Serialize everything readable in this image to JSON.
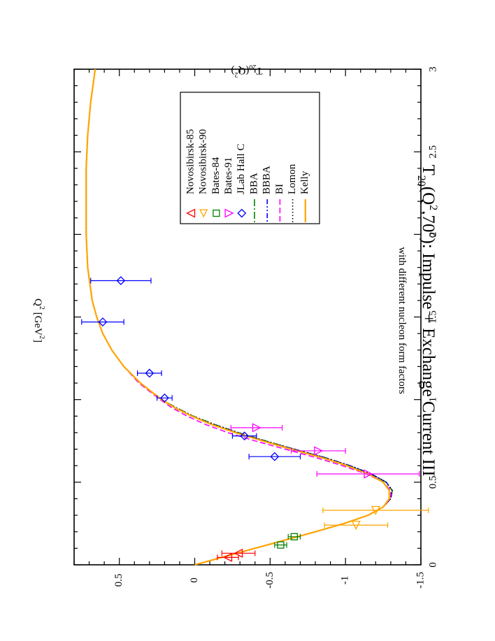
{
  "chart_data": {
    "type": "line",
    "title_main": "T",
    "title_sub": "20",
    "title_arg": "(Q",
    "title_sup": "2",
    "title_mid": ",70",
    "title_sup2": "o",
    "title_rest": "): Impulse + Exchange Current  III",
    "subtitle": "with different nucleon form factors",
    "xlabel": "Q",
    "xlabel_sup": "2",
    "xlabel_unit": " [GeV",
    "xlabel_unit_sup": "2",
    "xlabel_end": "]",
    "ylabel": "T",
    "ylabel_sub": "20",
    "ylabel_arg": "(Q",
    "ylabel_sup": "2",
    "ylabel_end": ")",
    "xlim": [
      0,
      3
    ],
    "ylim": [
      -1.5,
      0.8
    ],
    "x_ticks": [
      "0",
      "0.5",
      "1",
      "1.5",
      "2",
      "2.5",
      "3"
    ],
    "x_tick_values": [
      0,
      0.5,
      1,
      1.5,
      2,
      2.5,
      3
    ],
    "y_ticks": [
      "-1.5",
      "-1",
      "-0.5",
      "0",
      "0.5"
    ],
    "y_tick_values": [
      -1.5,
      -1,
      -0.5,
      0,
      0.5
    ],
    "data_series": [
      {
        "name": "Novosibirsk-85",
        "marker": "triangle-left",
        "color": "#ff0000",
        "points": [
          {
            "x": 0.045,
            "y": -0.22,
            "err": 0.07
          },
          {
            "x": 0.07,
            "y": -0.29,
            "err": 0.11
          }
        ]
      },
      {
        "name": "Novosibirsk-90",
        "marker": "triangle-down",
        "color": "#ffa500",
        "points": [
          {
            "x": 0.24,
            "y": -1.07,
            "err": 0.21
          },
          {
            "x": 0.33,
            "y": -1.2,
            "err": 0.35
          }
        ]
      },
      {
        "name": "Bates-84",
        "marker": "square",
        "color": "#008000",
        "points": [
          {
            "x": 0.12,
            "y": -0.57,
            "err": 0.04
          },
          {
            "x": 0.17,
            "y": -0.66,
            "err": 0.04
          }
        ]
      },
      {
        "name": "Bates-91",
        "marker": "triangle-right",
        "color": "#ff00ff",
        "points": [
          {
            "x": 0.55,
            "y": -1.15,
            "err": 0.34
          },
          {
            "x": 0.69,
            "y": -0.82,
            "err": 0.18
          },
          {
            "x": 0.83,
            "y": -0.41,
            "err": 0.17
          }
        ]
      },
      {
        "name": "JLab Hall C",
        "marker": "diamond",
        "color": "#0000ff",
        "points": [
          {
            "x": 0.655,
            "y": -0.53,
            "err": 0.17
          },
          {
            "x": 0.78,
            "y": -0.33,
            "err": 0.08
          },
          {
            "x": 1.01,
            "y": 0.2,
            "err": 0.05
          },
          {
            "x": 1.16,
            "y": 0.3,
            "err": 0.08
          },
          {
            "x": 1.47,
            "y": 0.61,
            "err": 0.14
          },
          {
            "x": 1.72,
            "y": 0.49,
            "err": 0.2
          }
        ]
      }
    ],
    "curves": [
      {
        "name": "BBA",
        "color": "#008000",
        "dash": "10 3 2 3",
        "x": [
          0,
          0.05,
          0.1,
          0.15,
          0.2,
          0.25,
          0.3,
          0.35,
          0.4,
          0.45,
          0.5,
          0.55,
          0.6,
          0.65,
          0.7,
          0.75,
          0.8,
          0.85,
          0.9,
          0.95,
          1.0,
          1.1,
          1.2,
          1.3,
          1.4,
          1.5,
          1.6,
          1.8,
          2.0,
          2.2,
          2.4,
          2.6,
          2.8,
          3.0
        ],
        "y": [
          0,
          -0.2,
          -0.4,
          -0.6,
          -0.8,
          -0.99,
          -1.15,
          -1.25,
          -1.3,
          -1.31,
          -1.27,
          -1.17,
          -1.03,
          -0.86,
          -0.66,
          -0.47,
          -0.29,
          -0.13,
          0.01,
          0.12,
          0.22,
          0.36,
          0.47,
          0.55,
          0.61,
          0.65,
          0.68,
          0.71,
          0.72,
          0.72,
          0.72,
          0.71,
          0.69,
          0.66
        ]
      },
      {
        "name": "BBBA",
        "color": "#0000ff",
        "dash": "7 3 2 3 2 3",
        "x": [
          0,
          0.05,
          0.1,
          0.15,
          0.2,
          0.25,
          0.3,
          0.35,
          0.4,
          0.45,
          0.5,
          0.55,
          0.6,
          0.65,
          0.7,
          0.75,
          0.8,
          0.85,
          0.9,
          0.95,
          1.0,
          1.1,
          1.2,
          1.3,
          1.4,
          1.5,
          1.6,
          1.8,
          2.0,
          2.2,
          2.4,
          2.6,
          2.8,
          3.0
        ],
        "y": [
          0,
          -0.2,
          -0.4,
          -0.6,
          -0.8,
          -0.99,
          -1.15,
          -1.25,
          -1.3,
          -1.31,
          -1.27,
          -1.17,
          -1.03,
          -0.86,
          -0.66,
          -0.46,
          -0.28,
          -0.12,
          0.02,
          0.13,
          0.22,
          0.36,
          0.47,
          0.55,
          0.61,
          0.65,
          0.68,
          0.71,
          0.72,
          0.72,
          0.72,
          0.71,
          0.69,
          0.66
        ]
      },
      {
        "name": "BI",
        "color": "#ff00ff",
        "dash": "8 4",
        "x": [
          0,
          0.05,
          0.1,
          0.15,
          0.2,
          0.25,
          0.3,
          0.35,
          0.4,
          0.45,
          0.5,
          0.55,
          0.6,
          0.65,
          0.7,
          0.75,
          0.8,
          0.85,
          0.9,
          0.95,
          1.0,
          1.1,
          1.2,
          1.3,
          1.4,
          1.5,
          1.6,
          1.8,
          2.0,
          2.2,
          2.4,
          2.6,
          2.8,
          3.0
        ],
        "y": [
          0,
          -0.2,
          -0.4,
          -0.6,
          -0.8,
          -0.99,
          -1.15,
          -1.25,
          -1.3,
          -1.3,
          -1.25,
          -1.14,
          -0.98,
          -0.8,
          -0.6,
          -0.4,
          -0.22,
          -0.07,
          0.05,
          0.15,
          0.23,
          0.37,
          0.47,
          0.55,
          0.61,
          0.65,
          0.68,
          0.71,
          0.72,
          0.72,
          0.72,
          0.71,
          0.69,
          0.66
        ]
      },
      {
        "name": "Lomon",
        "color": "#000000",
        "dash": "1.5 3",
        "x": [
          0,
          0.05,
          0.1,
          0.15,
          0.2,
          0.25,
          0.3,
          0.35,
          0.4,
          0.45,
          0.5,
          0.55,
          0.6,
          0.65,
          0.7,
          0.75,
          0.8,
          0.85,
          0.9,
          0.95,
          1.0,
          1.1,
          1.2,
          1.3,
          1.4,
          1.5,
          1.6,
          1.8,
          2.0,
          2.2,
          2.4,
          2.6,
          2.8,
          3.0
        ],
        "y": [
          0,
          -0.2,
          -0.4,
          -0.6,
          -0.8,
          -0.99,
          -1.15,
          -1.25,
          -1.3,
          -1.31,
          -1.27,
          -1.17,
          -1.03,
          -0.86,
          -0.66,
          -0.47,
          -0.29,
          -0.13,
          0.01,
          0.12,
          0.22,
          0.36,
          0.47,
          0.55,
          0.61,
          0.65,
          0.68,
          0.71,
          0.72,
          0.72,
          0.72,
          0.71,
          0.69,
          0.66
        ]
      },
      {
        "name": "Kelly",
        "color": "#ffa500",
        "dash": "",
        "x": [
          0,
          0.05,
          0.1,
          0.15,
          0.2,
          0.25,
          0.3,
          0.35,
          0.4,
          0.45,
          0.5,
          0.55,
          0.6,
          0.65,
          0.7,
          0.75,
          0.8,
          0.85,
          0.9,
          0.95,
          1.0,
          1.1,
          1.2,
          1.3,
          1.4,
          1.5,
          1.6,
          1.8,
          2.0,
          2.2,
          2.4,
          2.6,
          2.8,
          3.0
        ],
        "y": [
          0,
          -0.2,
          -0.4,
          -0.6,
          -0.8,
          -0.99,
          -1.15,
          -1.25,
          -1.29,
          -1.29,
          -1.25,
          -1.15,
          -1.01,
          -0.84,
          -0.64,
          -0.45,
          -0.27,
          -0.11,
          0.02,
          0.13,
          0.22,
          0.36,
          0.47,
          0.55,
          0.61,
          0.65,
          0.68,
          0.71,
          0.72,
          0.72,
          0.72,
          0.71,
          0.69,
          0.66
        ]
      }
    ],
    "legend_position": "top-right"
  }
}
